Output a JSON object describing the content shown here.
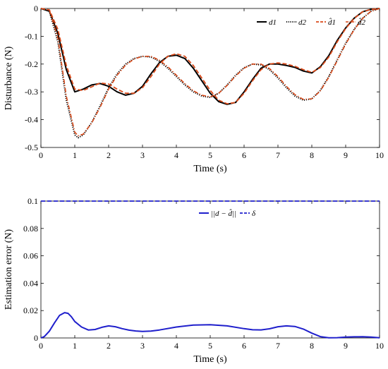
{
  "chart_data": [
    {
      "type": "line",
      "xlabel": "Time (s)",
      "ylabel": "Disturbance (N)",
      "xlim": [
        0,
        10
      ],
      "ylim": [
        -0.5,
        0
      ],
      "xticks": [
        "0",
        "1",
        "2",
        "3",
        "4",
        "5",
        "6",
        "7",
        "8",
        "9",
        "10"
      ],
      "yticks": [
        "0",
        "-0.1",
        "-0.2",
        "-0.3",
        "-0.4",
        "-0.5"
      ],
      "grid": false,
      "legend_position": "top-right",
      "series": [
        {
          "name": "d1",
          "color": "#000000",
          "style": "solid",
          "x": [
            0,
            0.25,
            0.5,
            0.75,
            1.0,
            1.25,
            1.5,
            1.75,
            2.0,
            2.25,
            2.5,
            2.75,
            3.0,
            3.25,
            3.5,
            3.75,
            4.0,
            4.25,
            4.5,
            4.75,
            5.0,
            5.25,
            5.5,
            5.75,
            6.0,
            6.25,
            6.5,
            6.75,
            7.0,
            7.25,
            7.5,
            7.75,
            8.0,
            8.25,
            8.5,
            8.75,
            9.0,
            9.25,
            9.5,
            9.75,
            10.0
          ],
          "values": [
            0,
            -0.01,
            -0.09,
            -0.22,
            -0.3,
            -0.29,
            -0.275,
            -0.27,
            -0.28,
            -0.3,
            -0.312,
            -0.305,
            -0.28,
            -0.235,
            -0.195,
            -0.172,
            -0.168,
            -0.18,
            -0.215,
            -0.26,
            -0.305,
            -0.335,
            -0.345,
            -0.338,
            -0.3,
            -0.255,
            -0.215,
            -0.2,
            -0.2,
            -0.205,
            -0.212,
            -0.225,
            -0.232,
            -0.21,
            -0.17,
            -0.115,
            -0.07,
            -0.035,
            -0.012,
            -0.003,
            0
          ]
        },
        {
          "name": "d2",
          "color": "#000000",
          "style": "dotted",
          "x": [
            0,
            0.25,
            0.5,
            0.75,
            1.0,
            1.1,
            1.25,
            1.5,
            1.75,
            2.0,
            2.25,
            2.5,
            2.75,
            3.0,
            3.25,
            3.5,
            3.75,
            4.0,
            4.25,
            4.5,
            4.75,
            5.0,
            5.25,
            5.5,
            5.75,
            6.0,
            6.25,
            6.5,
            6.75,
            7.0,
            7.25,
            7.5,
            7.75,
            8.0,
            8.25,
            8.5,
            8.75,
            9.0,
            9.25,
            9.5,
            9.75,
            10.0
          ],
          "values": [
            0,
            -0.01,
            -0.12,
            -0.33,
            -0.455,
            -0.465,
            -0.455,
            -0.41,
            -0.35,
            -0.285,
            -0.235,
            -0.2,
            -0.18,
            -0.172,
            -0.175,
            -0.19,
            -0.215,
            -0.245,
            -0.275,
            -0.3,
            -0.315,
            -0.32,
            -0.305,
            -0.275,
            -0.24,
            -0.213,
            -0.2,
            -0.203,
            -0.22,
            -0.25,
            -0.285,
            -0.315,
            -0.33,
            -0.325,
            -0.295,
            -0.245,
            -0.185,
            -0.125,
            -0.075,
            -0.035,
            -0.01,
            0
          ]
        },
        {
          "name": "d̂1",
          "color": "#d94a1a",
          "style": "dashed",
          "x": [
            0,
            0.25,
            0.5,
            0.75,
            1.0,
            1.25,
            1.5,
            1.75,
            2.0,
            2.25,
            2.5,
            2.75,
            3.0,
            3.25,
            3.5,
            3.75,
            4.0,
            4.25,
            4.5,
            4.75,
            5.0,
            5.25,
            5.5,
            5.75,
            6.0,
            6.25,
            6.5,
            6.75,
            7.0,
            7.25,
            7.5,
            7.75,
            8.0,
            8.25,
            8.5,
            8.75,
            9.0,
            9.25,
            9.5,
            9.75,
            10.0
          ],
          "values": [
            0,
            -0.005,
            -0.075,
            -0.205,
            -0.29,
            -0.295,
            -0.282,
            -0.268,
            -0.272,
            -0.29,
            -0.305,
            -0.305,
            -0.285,
            -0.245,
            -0.2,
            -0.172,
            -0.163,
            -0.172,
            -0.205,
            -0.25,
            -0.295,
            -0.33,
            -0.343,
            -0.338,
            -0.305,
            -0.26,
            -0.22,
            -0.2,
            -0.196,
            -0.2,
            -0.208,
            -0.22,
            -0.23,
            -0.213,
            -0.175,
            -0.12,
            -0.072,
            -0.036,
            -0.012,
            -0.003,
            0
          ]
        },
        {
          "name": "d̂2",
          "color": "#d94a1a",
          "style": "dashdot",
          "x": [
            0,
            0.25,
            0.5,
            0.75,
            1.0,
            1.1,
            1.25,
            1.5,
            1.75,
            2.0,
            2.25,
            2.5,
            2.75,
            3.0,
            3.25,
            3.5,
            3.75,
            4.0,
            4.25,
            4.5,
            4.75,
            5.0,
            5.25,
            5.5,
            5.75,
            6.0,
            6.25,
            6.5,
            6.75,
            7.0,
            7.25,
            7.5,
            7.75,
            8.0,
            8.25,
            8.5,
            8.75,
            9.0,
            9.25,
            9.5,
            9.75,
            10.0
          ],
          "values": [
            0,
            -0.006,
            -0.105,
            -0.315,
            -0.445,
            -0.458,
            -0.452,
            -0.412,
            -0.355,
            -0.29,
            -0.24,
            -0.204,
            -0.182,
            -0.172,
            -0.172,
            -0.186,
            -0.21,
            -0.24,
            -0.27,
            -0.296,
            -0.312,
            -0.318,
            -0.305,
            -0.277,
            -0.243,
            -0.215,
            -0.2,
            -0.2,
            -0.216,
            -0.245,
            -0.28,
            -0.31,
            -0.327,
            -0.325,
            -0.297,
            -0.248,
            -0.188,
            -0.128,
            -0.077,
            -0.036,
            -0.01,
            0
          ]
        }
      ]
    },
    {
      "type": "line",
      "xlabel": "Time (s)",
      "ylabel": "Estimation error (N)",
      "xlim": [
        0,
        10
      ],
      "ylim": [
        0,
        0.1
      ],
      "xticks": [
        "0",
        "1",
        "2",
        "3",
        "4",
        "5",
        "6",
        "7",
        "8",
        "9",
        "10"
      ],
      "yticks": [
        "0",
        "0.02",
        "0.04",
        "0.06",
        "0.08",
        "0.1"
      ],
      "grid": false,
      "legend_position": "top-right",
      "series": [
        {
          "name": "||d − d̂||",
          "color": "#1f1fcc",
          "style": "solid",
          "x": [
            0,
            0.1,
            0.25,
            0.4,
            0.55,
            0.7,
            0.8,
            0.9,
            1.0,
            1.2,
            1.4,
            1.6,
            1.8,
            2.0,
            2.2,
            2.4,
            2.6,
            2.8,
            3.0,
            3.25,
            3.5,
            4.0,
            4.5,
            5.0,
            5.5,
            6.0,
            6.25,
            6.5,
            6.75,
            7.0,
            7.25,
            7.5,
            7.75,
            8.0,
            8.25,
            8.5,
            8.75,
            9.0,
            9.25,
            9.5,
            9.75,
            10.0
          ],
          "values": [
            0,
            0.001,
            0.005,
            0.011,
            0.0165,
            0.0185,
            0.018,
            0.0155,
            0.012,
            0.008,
            0.0058,
            0.0062,
            0.0078,
            0.0088,
            0.0082,
            0.0068,
            0.0057,
            0.0051,
            0.0048,
            0.005,
            0.0058,
            0.008,
            0.0094,
            0.0097,
            0.0088,
            0.0068,
            0.006,
            0.0059,
            0.0067,
            0.0082,
            0.0088,
            0.0084,
            0.0065,
            0.0035,
            0.001,
            0.0001,
            0.0002,
            0.0006,
            0.0008,
            0.0009,
            0.0006,
            0.0001
          ]
        },
        {
          "name": "δ",
          "color": "#1f1fcc",
          "style": "dashed",
          "x": [
            0,
            10
          ],
          "values": [
            0.1,
            0.1
          ]
        }
      ]
    }
  ]
}
